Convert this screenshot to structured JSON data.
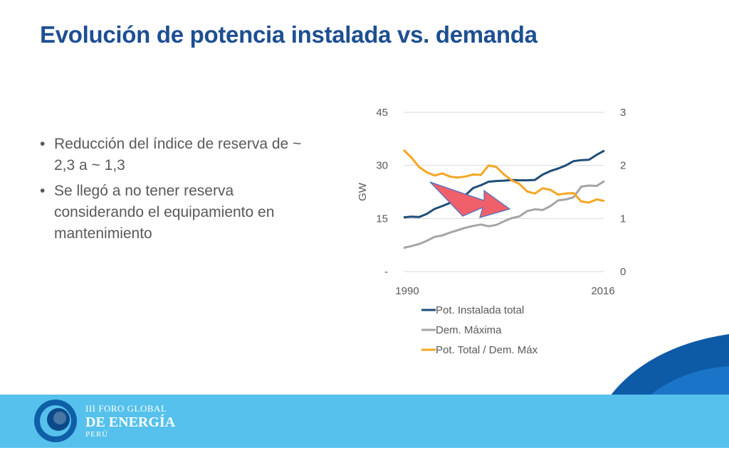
{
  "slide": {
    "title": "Evolución de potencia instalada vs. demanda",
    "bullets": [
      "Reducción del índice de reserva de ~ 2,3 a ~ 1,3",
      "Se llegó a no tener reserva considerando el equipamiento en mantenimiento"
    ]
  },
  "footer": {
    "logo_line1": "III FORO GLOBAL",
    "logo_line2": "DE ENERGÍA",
    "logo_line3": "PERÚ"
  },
  "colors": {
    "title": "#1d4f91",
    "band": "#55c1ec",
    "series_installed": "#1f4e79",
    "series_demand": "#a5a5a5",
    "series_ratio": "#f5a623",
    "arrow": "#f0606b"
  },
  "chart_data": {
    "type": "line",
    "x_tick_labels": [
      "1990",
      "2016"
    ],
    "ylabel": "GW",
    "ylim": [
      0,
      45
    ],
    "y2lim": [
      0,
      3
    ],
    "y_tick_labels": [
      "45",
      "30",
      "15",
      "-"
    ],
    "y2_tick_labels": [
      "3",
      "2",
      "1",
      "0"
    ],
    "grid": true,
    "legend_position": "bottom",
    "x": [
      1990,
      1991,
      1992,
      1993,
      1994,
      1995,
      1996,
      1997,
      1998,
      1999,
      2000,
      2001,
      2002,
      2003,
      2004,
      2005,
      2006,
      2007,
      2008,
      2009,
      2010,
      2011,
      2012,
      2013,
      2014,
      2015,
      2016
    ],
    "series": [
      {
        "name": "Pot. Instalada total",
        "axis": "left",
        "color": "#1f4e79",
        "values": [
          15.3,
          15.5,
          15.4,
          16.3,
          17.7,
          18.5,
          19.4,
          20.6,
          21.6,
          23.6,
          24.4,
          25.4,
          25.6,
          25.7,
          25.9,
          25.8,
          25.8,
          25.9,
          27.4,
          28.4,
          29.1,
          30.0,
          31.2,
          31.5,
          31.6,
          33.0,
          34.2
        ]
      },
      {
        "name": "Dem. Máxima",
        "axis": "left",
        "color": "#a5a5a5",
        "values": [
          6.7,
          7.2,
          7.8,
          8.7,
          9.8,
          10.2,
          11.0,
          11.7,
          12.4,
          12.9,
          13.3,
          12.8,
          13.2,
          14.2,
          15.1,
          15.6,
          17.1,
          17.6,
          17.4,
          18.5,
          20.1,
          20.4,
          21.0,
          24.0,
          24.3,
          24.2,
          25.6
        ]
      },
      {
        "name": "Pot. Total / Dem. Máx",
        "axis": "right",
        "color": "#f5a623",
        "values": [
          2.29,
          2.15,
          1.97,
          1.87,
          1.81,
          1.85,
          1.79,
          1.77,
          1.79,
          1.83,
          1.82,
          2.0,
          1.97,
          1.83,
          1.72,
          1.65,
          1.51,
          1.47,
          1.57,
          1.54,
          1.45,
          1.47,
          1.48,
          1.32,
          1.3,
          1.36,
          1.33
        ]
      }
    ],
    "annotation": "arrow"
  }
}
